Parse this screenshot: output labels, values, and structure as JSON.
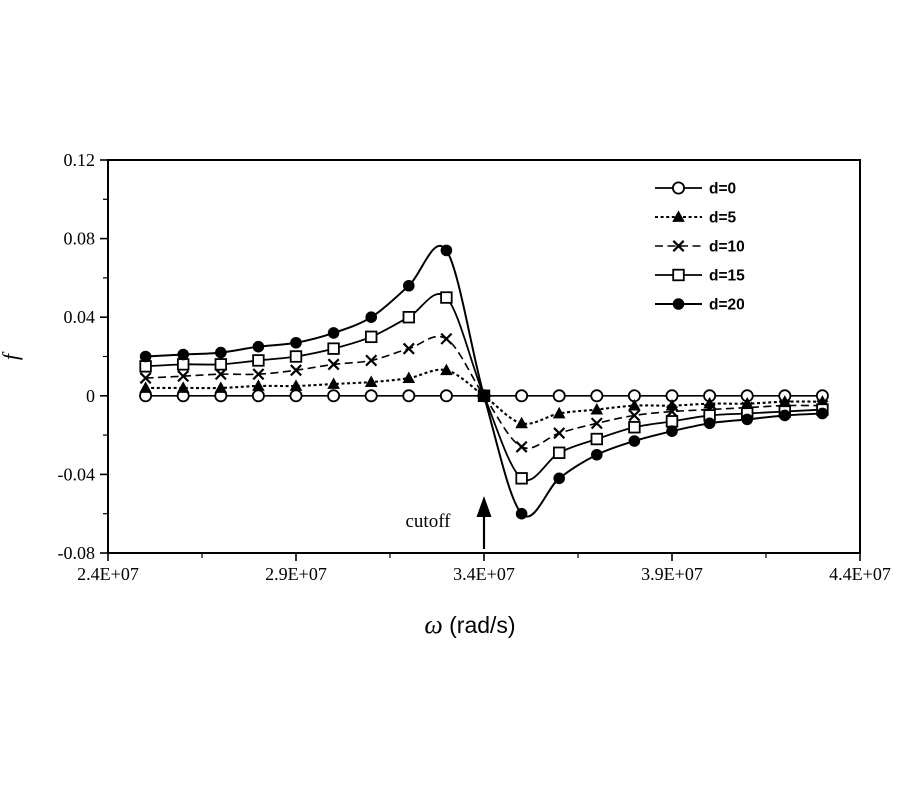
{
  "figure": {
    "background": "#ffffff",
    "ink_color": "#000000"
  },
  "chart_data": {
    "type": "line",
    "title": "",
    "xlabel": "ω (rad/s)",
    "xlabel_parts": {
      "omega": "ω",
      "units": " (rad/s)"
    },
    "ylabel": "f",
    "xlim": [
      24000000,
      44000000
    ],
    "ylim": [
      -0.08,
      0.12
    ],
    "x_tick_values": [
      24000000,
      29000000,
      34000000,
      39000000,
      44000000
    ],
    "x_tick_labels": [
      "2.4E+07",
      "2.9E+07",
      "3.4E+07",
      "3.9E+07",
      "4.4E+07"
    ],
    "x_minor_tick_values": [
      26500000,
      31500000,
      36500000,
      41500000
    ],
    "y_tick_values": [
      -0.08,
      -0.04,
      0,
      0.04,
      0.08,
      0.12
    ],
    "y_tick_labels": [
      "-0.08",
      "-0.04",
      "0",
      "0.04",
      "0.08",
      "0.12"
    ],
    "y_minor_tick_values": [
      -0.06,
      -0.02,
      0.02,
      0.06,
      0.1
    ],
    "grid": "off",
    "legend_position": "top-right-inside",
    "x": [
      25000000,
      26000000,
      27000000,
      28000000,
      29000000,
      30000000,
      31000000,
      32000000,
      33000000,
      34000000,
      35000000,
      36000000,
      37000000,
      38000000,
      39000000,
      40000000,
      41000000,
      42000000,
      43000000
    ],
    "series": [
      {
        "name": "d=0",
        "marker": "circle-open",
        "line": "solid",
        "values": [
          0,
          0,
          0,
          0,
          0,
          0,
          0,
          0,
          0,
          0,
          0,
          0,
          0,
          0,
          0,
          0,
          0,
          0,
          0
        ]
      },
      {
        "name": "d=5",
        "marker": "triangle-filled",
        "line": "fine-dash",
        "values": [
          0.004,
          0.004,
          0.004,
          0.005,
          0.005,
          0.006,
          0.007,
          0.009,
          0.013,
          0,
          -0.014,
          -0.009,
          -0.007,
          -0.005,
          -0.005,
          -0.004,
          -0.004,
          -0.003,
          -0.003
        ]
      },
      {
        "name": "d=10",
        "marker": "x",
        "line": "dash",
        "values": [
          0.009,
          0.01,
          0.011,
          0.011,
          0.013,
          0.016,
          0.018,
          0.024,
          0.029,
          0,
          -0.026,
          -0.019,
          -0.014,
          -0.01,
          -0.008,
          -0.007,
          -0.006,
          -0.005,
          -0.005
        ]
      },
      {
        "name": "d=15",
        "marker": "square-open",
        "line": "solid",
        "values": [
          0.015,
          0.016,
          0.016,
          0.018,
          0.02,
          0.024,
          0.03,
          0.04,
          0.05,
          0,
          -0.042,
          -0.029,
          -0.022,
          -0.016,
          -0.013,
          -0.01,
          -0.009,
          -0.008,
          -0.007
        ]
      },
      {
        "name": "d=20",
        "marker": "circle-filled",
        "line": "solid",
        "values": [
          0.02,
          0.021,
          0.022,
          0.025,
          0.027,
          0.032,
          0.04,
          0.056,
          0.074,
          0,
          -0.06,
          -0.042,
          -0.03,
          -0.023,
          -0.018,
          -0.014,
          -0.012,
          -0.01,
          -0.009
        ]
      }
    ],
    "annotations": {
      "cutoff": {
        "label": "cutoff",
        "x": 34000000,
        "value_at_convergence": 0,
        "convergence_marker": "square-filled",
        "arrow": "up-arrow-below-convergence"
      }
    }
  }
}
